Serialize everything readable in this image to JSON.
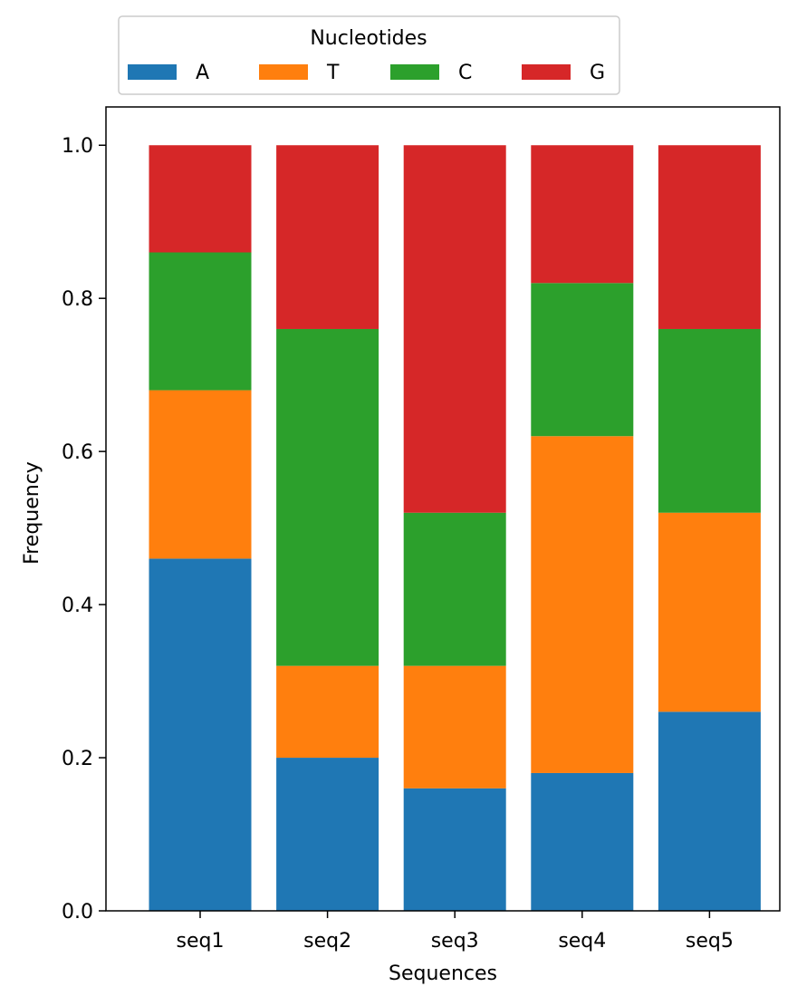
{
  "chart_data": {
    "type": "bar",
    "stacked": true,
    "title": "",
    "xlabel": "Sequences",
    "ylabel": "Frequency",
    "categories": [
      "seq1",
      "seq2",
      "seq3",
      "seq4",
      "seq5"
    ],
    "ylim": [
      0,
      1.05
    ],
    "yticks": [
      "0.0",
      "0.2",
      "0.4",
      "0.6",
      "0.8",
      "1.0"
    ],
    "grid": false,
    "legend": {
      "title": "Nucleotides",
      "placement": "top-center, above plot, 4 columns"
    },
    "series": [
      {
        "name": "A",
        "color": "#1f77b4",
        "values": [
          0.46,
          0.2,
          0.16,
          0.18,
          0.26
        ]
      },
      {
        "name": "T",
        "color": "#ff7f0e",
        "values": [
          0.22,
          0.12,
          0.16,
          0.44,
          0.26
        ]
      },
      {
        "name": "C",
        "color": "#2ca02c",
        "values": [
          0.18,
          0.44,
          0.2,
          0.2,
          0.24
        ]
      },
      {
        "name": "G",
        "color": "#d62728",
        "values": [
          0.14,
          0.24,
          0.48,
          0.18,
          0.24
        ]
      }
    ]
  }
}
